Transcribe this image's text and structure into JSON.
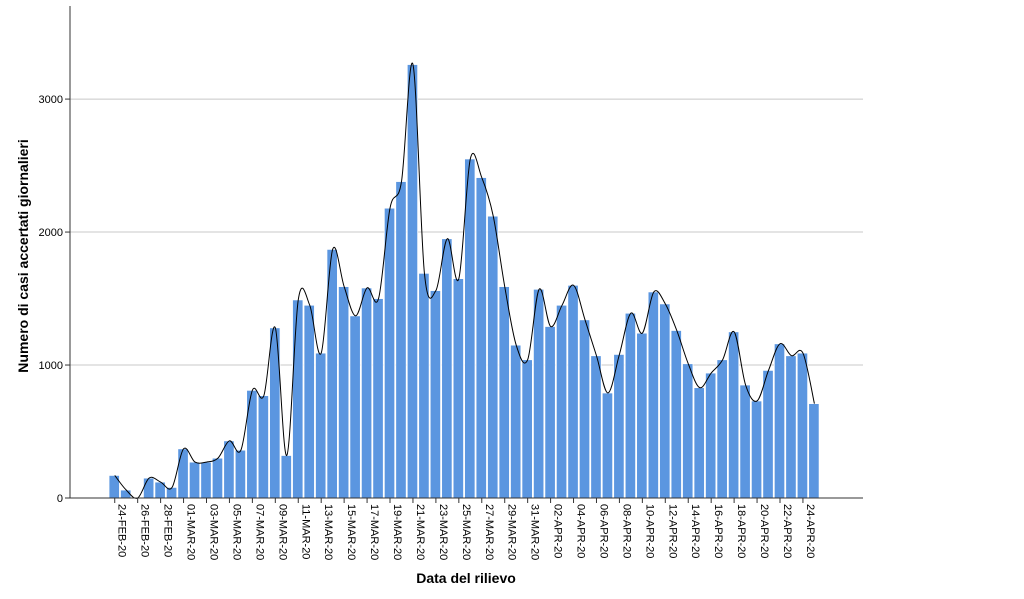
{
  "chart_data": {
    "type": "bar",
    "title": "",
    "xlabel": "Data del rilievo",
    "ylabel": "Numero di casi accertati giornalieri",
    "ylim": [
      0,
      3700
    ],
    "yticks": [
      0,
      1000,
      2000,
      3000
    ],
    "grid": true,
    "bar_color": "#5b96e0",
    "curve_color": "#000000",
    "has_smooth_curve": true,
    "categories": [
      "24-FEB-20",
      "25-FEB-20",
      "26-FEB-20",
      "27-FEB-20",
      "28-FEB-20",
      "29-FEB-20",
      "01-MAR-20",
      "02-MAR-20",
      "03-MAR-20",
      "04-MAR-20",
      "05-MAR-20",
      "06-MAR-20",
      "07-MAR-20",
      "08-MAR-20",
      "09-MAR-20",
      "10-MAR-20",
      "11-MAR-20",
      "12-MAR-20",
      "13-MAR-20",
      "14-MAR-20",
      "15-MAR-20",
      "16-MAR-20",
      "17-MAR-20",
      "18-MAR-20",
      "19-MAR-20",
      "20-MAR-20",
      "21-MAR-20",
      "22-MAR-20",
      "23-MAR-20",
      "24-MAR-20",
      "25-MAR-20",
      "26-MAR-20",
      "27-MAR-20",
      "28-MAR-20",
      "29-MAR-20",
      "30-MAR-20",
      "31-MAR-20",
      "01-APR-20",
      "02-APR-20",
      "03-APR-20",
      "04-APR-20",
      "05-APR-20",
      "06-APR-20",
      "07-APR-20",
      "08-APR-20",
      "09-APR-20",
      "10-APR-20",
      "11-APR-20",
      "12-APR-20",
      "13-APR-20",
      "14-APR-20",
      "15-APR-20",
      "16-APR-20",
      "17-APR-20",
      "18-APR-20",
      "19-APR-20",
      "20-APR-20",
      "21-APR-20",
      "22-APR-20",
      "23-APR-20",
      "24-APR-20",
      "25-APR-20"
    ],
    "tick_labels": [
      "24-FEB-20",
      "26-FEB-20",
      "28-FEB-20",
      "01-MAR-20",
      "03-MAR-20",
      "05-MAR-20",
      "07-MAR-20",
      "09-MAR-20",
      "11-MAR-20",
      "13-MAR-20",
      "15-MAR-20",
      "17-MAR-20",
      "19-MAR-20",
      "21-MAR-20",
      "23-MAR-20",
      "25-MAR-20",
      "27-MAR-20",
      "29-MAR-20",
      "31-MAR-20",
      "02-APR-20",
      "04-APR-20",
      "06-APR-20",
      "08-APR-20",
      "10-APR-20",
      "12-APR-20",
      "14-APR-20",
      "16-APR-20",
      "18-APR-20",
      "20-APR-20",
      "22-APR-20",
      "24-APR-20"
    ],
    "values": [
      170,
      60,
      0,
      150,
      120,
      80,
      370,
      270,
      270,
      300,
      430,
      360,
      810,
      770,
      1280,
      320,
      1490,
      1450,
      1090,
      1870,
      1590,
      1370,
      1580,
      1500,
      2180,
      2380,
      3260,
      1690,
      1560,
      1950,
      1650,
      2550,
      2410,
      2120,
      1590,
      1150,
      1040,
      1570,
      1290,
      1450,
      1600,
      1340,
      1070,
      790,
      1080,
      1390,
      1240,
      1550,
      1460,
      1260,
      1010,
      830,
      940,
      1040,
      1250,
      850,
      730,
      960,
      1160,
      1070,
      1090,
      710
    ]
  }
}
